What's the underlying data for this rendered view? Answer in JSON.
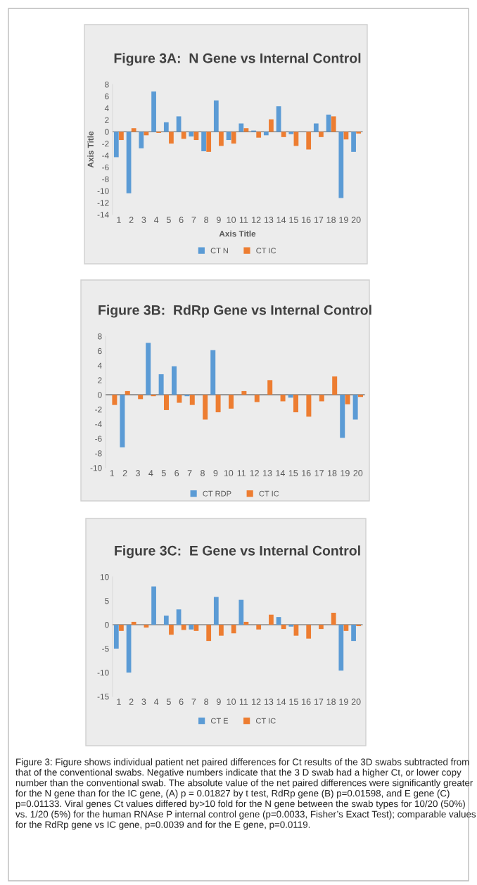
{
  "chart_data": [
    {
      "type": "bar",
      "title": "Figure 3A:  N Gene vs Internal Control",
      "xlabel": "Axis Title",
      "ylabel": "Axis Title",
      "categories": [
        "1",
        "2",
        "3",
        "4",
        "5",
        "6",
        "7",
        "8",
        "9",
        "10",
        "11",
        "12",
        "13",
        "14",
        "15",
        "16",
        "17",
        "18",
        "19",
        "20"
      ],
      "series": [
        {
          "name": "CT N",
          "color": "#5b9bd5",
          "values": [
            -4.3,
            -10.4,
            -2.8,
            6.8,
            1.6,
            2.6,
            -0.8,
            -3.3,
            5.3,
            -1.4,
            1.4,
            0.2,
            -0.6,
            4.3,
            -0.4,
            0,
            1.4,
            2.9,
            -11.2,
            -3.4
          ]
        },
        {
          "name": "CT IC",
          "color": "#ed7d31",
          "values": [
            -1.4,
            0.6,
            -0.6,
            -0.2,
            -2.0,
            -1.2,
            -1.4,
            -3.4,
            -2.4,
            -2.0,
            0.6,
            -1.0,
            2.1,
            -0.9,
            -2.4,
            -3.0,
            -0.9,
            2.6,
            -1.3,
            -0.3
          ]
        }
      ],
      "ylim": [
        -14,
        8
      ],
      "yticks": [
        -14,
        -12,
        -10,
        -8,
        -6,
        -4,
        -2,
        0,
        2,
        4,
        6,
        8
      ],
      "legend": "bottom"
    },
    {
      "type": "bar",
      "title": "Figure 3B:  RdRp Gene vs Internal Control",
      "categories": [
        "1",
        "2",
        "3",
        "4",
        "5",
        "6",
        "7",
        "8",
        "9",
        "10",
        "11",
        "12",
        "13",
        "14",
        "15",
        "16",
        "17",
        "18",
        "19",
        "20"
      ],
      "series": [
        {
          "name": "CT RDP",
          "color": "#5b9bd5",
          "values": [
            0,
            -7.2,
            0,
            7.1,
            2.8,
            3.9,
            -0.2,
            0,
            6.1,
            0,
            0,
            0,
            0,
            0,
            -0.4,
            0,
            0,
            0,
            -5.9,
            -3.4
          ]
        },
        {
          "name": "CT IC",
          "color": "#ed7d31",
          "values": [
            -1.4,
            0.5,
            -0.6,
            -0.2,
            -2.1,
            -1.1,
            -1.4,
            -3.4,
            -2.4,
            -1.9,
            0.5,
            -1.0,
            2.0,
            -0.9,
            -2.4,
            -3.0,
            -0.9,
            2.5,
            -1.3,
            -0.3
          ]
        }
      ],
      "ylim": [
        -10,
        8
      ],
      "yticks": [
        -10,
        -8,
        -6,
        -4,
        -2,
        0,
        2,
        4,
        6,
        8
      ],
      "legend": "bottom"
    },
    {
      "type": "bar",
      "title": "Figure 3C:  E Gene vs Internal Control",
      "categories": [
        "1",
        "2",
        "3",
        "4",
        "5",
        "6",
        "7",
        "8",
        "9",
        "10",
        "11",
        "12",
        "13",
        "14",
        "15",
        "16",
        "17",
        "18",
        "19",
        "20"
      ],
      "series": [
        {
          "name": "CT E",
          "color": "#5b9bd5",
          "values": [
            -5.0,
            -10.0,
            0,
            8.0,
            1.9,
            3.2,
            -1.0,
            0,
            5.8,
            0,
            5.2,
            0,
            0,
            1.6,
            -0.4,
            0,
            0,
            0,
            -9.6,
            -3.4
          ]
        },
        {
          "name": "CT IC",
          "color": "#ed7d31",
          "values": [
            -1.3,
            0.6,
            -0.6,
            0,
            -2.1,
            -1.1,
            -1.3,
            -3.4,
            -2.3,
            -1.8,
            0.6,
            -1.0,
            2.1,
            -0.9,
            -2.3,
            -2.9,
            -0.9,
            2.5,
            -1.3,
            -0.3
          ]
        }
      ],
      "ylim": [
        -15,
        10
      ],
      "yticks": [
        -15,
        -10,
        -5,
        0,
        5,
        10
      ],
      "legend": "bottom",
      "annotations": [
        "Figure 3: Figure shows individual patient net paired differences for Ct results of the 3D swabs subtracted from that of the conventional swabs. Negative numbers indicate that the 3 D swab had a higher Ct, or lower copy number than the conventional swab. The absolute value of the net paired differences were significantly greater for the N gene than for the IC gene, (A) p = 0.01827 by t test, RdRp gene (B) p=0.01598, and E gene (C) p=0.01133. Viral genes Ct values differed by>10 fold for the N gene between the swab types for 10/20 (50%) vs. 1/20 (5%) for the human RNAse P internal control gene (p=0.0033, Fisher’s Exact Test); comparable values for the RdRp gene vs IC gene, p=0.0039 and for the E gene, p=0.0119."
      ]
    }
  ]
}
